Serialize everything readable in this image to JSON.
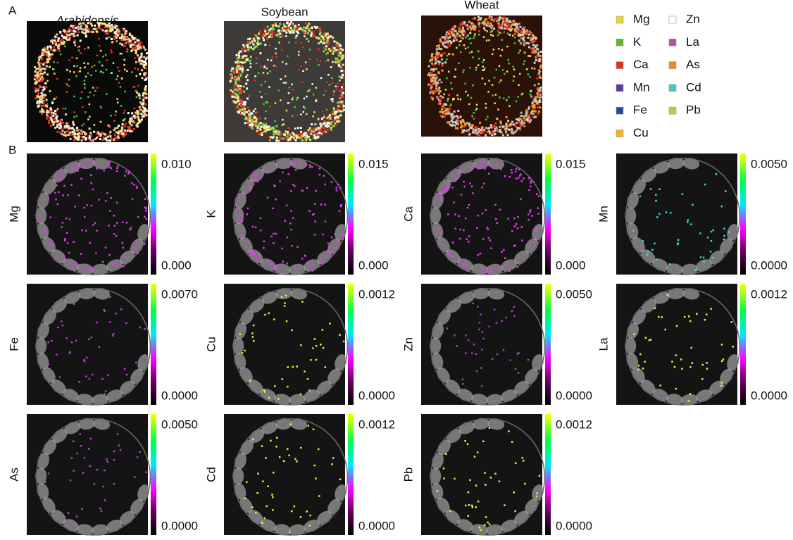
{
  "panel_a": {
    "label": "A",
    "samples": [
      {
        "name": "Arabidopsis",
        "background": "#0a0a0a",
        "ring": [
          "#ffffff",
          "#f5e36a",
          "#e8322a",
          "#f2c9a0"
        ],
        "dots": [
          "#3ad13a",
          "#e8322a",
          "#f5e36a"
        ]
      },
      {
        "name": "Soybean",
        "background": "#3d3a38",
        "ring": [
          "#e8322a",
          "#f5e36a",
          "#ffffff",
          "#8fd04a"
        ],
        "dots": [
          "#f5e36a",
          "#ffffff",
          "#3ad13a",
          "#e8322a"
        ]
      },
      {
        "name": "Wheat",
        "background": "#2a1208",
        "ring": [
          "#d9d4cf",
          "#bdb6ae",
          "#e8322a",
          "#f0a020"
        ],
        "dots": [
          "#3ad13a",
          "#f5e36a"
        ]
      }
    ],
    "legend": [
      {
        "name": "Mg",
        "color": "#e8d833"
      },
      {
        "name": "K",
        "color": "#6ab52e"
      },
      {
        "name": "Ca",
        "color": "#e03026"
      },
      {
        "name": "Mn",
        "color": "#5b3d9a"
      },
      {
        "name": "Fe",
        "color": "#2448a0"
      },
      {
        "name": "Cu",
        "color": "#f0b428"
      },
      {
        "name": "Zn",
        "color": "#ffffff"
      },
      {
        "name": "La",
        "color": "#a855a8"
      },
      {
        "name": "As",
        "color": "#ef8a1e"
      },
      {
        "name": "Cd",
        "color": "#4fc4c0"
      },
      {
        "name": "Pb",
        "color": "#b9d232"
      }
    ]
  },
  "panel_b": {
    "label": "B",
    "maps": [
      {
        "element": "Mg",
        "max": "0.010",
        "min": "0.000",
        "dot_color": "#d63ee0"
      },
      {
        "element": "K",
        "max": "0.015",
        "min": "0.000",
        "dot_color": "#e03cf0"
      },
      {
        "element": "Ca",
        "max": "0.015",
        "min": "0.000",
        "dot_color": "#e83cf0"
      },
      {
        "element": "Mn",
        "max": "0.0050",
        "min": "0.0000",
        "dot_color": "#40d8e0"
      },
      {
        "element": "Fe",
        "max": "0.0070",
        "min": "0.0000",
        "dot_color": "#c03ad8"
      },
      {
        "element": "Cu",
        "max": "0.0012",
        "min": "0.0000",
        "dot_color": "#f0f040"
      },
      {
        "element": "Zn",
        "max": "0.0050",
        "min": "0.0000",
        "dot_color": "#b03ac8"
      },
      {
        "element": "La",
        "max": "0.0012",
        "min": "0.0000",
        "dot_color": "#f0f040"
      },
      {
        "element": "As",
        "max": "0.0050",
        "min": "0.0000",
        "dot_color": "#c03ad8"
      },
      {
        "element": "Cd",
        "max": "0.0012",
        "min": "0.0000",
        "dot_color": "#f0f040"
      },
      {
        "element": "Pb",
        "max": "0.0012",
        "min": "0.0000",
        "dot_color": "#f0f040"
      }
    ]
  }
}
